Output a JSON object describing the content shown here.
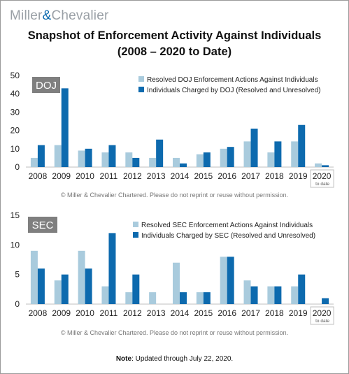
{
  "brand": {
    "name_left": "Miller",
    "amp": "&",
    "name_right": "Chevalier"
  },
  "title": {
    "line1": "Snapshot of Enforcement Activity Against Individuals",
    "line2": "(2008 – 2020 to Date)"
  },
  "copyright": "© Miller & Chevalier Chartered. Please do not reprint or reuse without permission.",
  "note": {
    "label": "Note",
    "text": ": Updated through July 22, 2020."
  },
  "colors": {
    "light": "#a9cbdd",
    "dark": "#0d6aae",
    "badge": "#7f7f7f"
  },
  "chart_data": [
    {
      "type": "bar",
      "label": "DOJ",
      "categories": [
        "2008",
        "2009",
        "2010",
        "2011",
        "2012",
        "2013",
        "2014",
        "2015",
        "2016",
        "2017",
        "2018",
        "2019",
        "2020"
      ],
      "last_category_note": "to date",
      "ylim": [
        0,
        50
      ],
      "yticks": [
        0,
        10,
        20,
        30,
        40,
        50
      ],
      "legend_position": "top-right",
      "series": [
        {
          "name": "Resolved DOJ Enforcement Actions Against Individuals",
          "color": "#a9cbdd",
          "values": [
            5,
            12,
            9,
            8,
            8,
            5,
            5,
            7,
            10,
            14,
            8,
            14,
            2
          ]
        },
        {
          "name": "Individuals Charged by DOJ (Resolved and Unresolved)",
          "color": "#0d6aae",
          "values": [
            12,
            43,
            10,
            12,
            5,
            15,
            2,
            8,
            11,
            21,
            14,
            23,
            1
          ]
        }
      ]
    },
    {
      "type": "bar",
      "label": "SEC",
      "categories": [
        "2008",
        "2009",
        "2010",
        "2011",
        "2012",
        "2013",
        "2014",
        "2015",
        "2016",
        "2017",
        "2018",
        "2019",
        "2020"
      ],
      "last_category_note": "to date",
      "ylim": [
        0,
        15
      ],
      "yticks": [
        0,
        5,
        10,
        15
      ],
      "legend_position": "top-right",
      "series": [
        {
          "name": "Resolved SEC Enforcement Actions Against Individuals",
          "color": "#a9cbdd",
          "values": [
            9,
            4,
            9,
            3,
            2,
            2,
            7,
            2,
            8,
            4,
            3,
            3,
            0
          ]
        },
        {
          "name": "Individuals Charged by SEC (Resolved and Unresolved)",
          "color": "#0d6aae",
          "values": [
            6,
            5,
            6,
            12,
            5,
            0,
            2,
            2,
            8,
            3,
            3,
            5,
            1
          ]
        }
      ]
    }
  ]
}
